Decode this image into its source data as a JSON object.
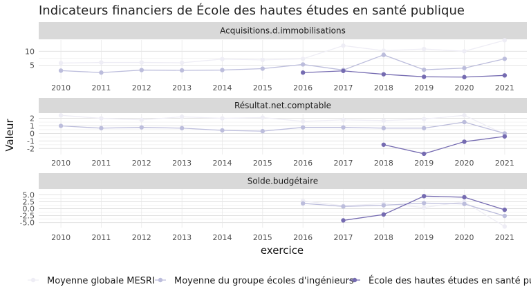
{
  "chart_data": {
    "type": "line",
    "title": "Indicateurs financiers de École des hautes études en santé publique",
    "xlabel": "exercice",
    "ylabel": "Valeur",
    "x": [
      2010,
      2011,
      2012,
      2013,
      2014,
      2015,
      2016,
      2017,
      2018,
      2019,
      2020,
      2021
    ],
    "legend_position": "bottom",
    "series_styles": [
      {
        "name": "Moyenne globale MESRI",
        "color": "#eeedf5"
      },
      {
        "name": "Moyenne du groupe écoles d'ingénieurs",
        "color": "#bcbddc"
      },
      {
        "name": "École des hautes études en santé publique",
        "color": "#756bb1"
      }
    ],
    "panels": [
      {
        "strip": "Acquisitions.d.immobilisations",
        "ylim": [
          0,
          14
        ],
        "yticks": [
          5,
          10
        ],
        "ytick_labels": [
          "5",
          "10"
        ],
        "series": [
          {
            "name": "Moyenne globale MESRI",
            "values": [
              5.8,
              6.0,
              6.0,
              5.9,
              7.2,
              6.9,
              7.3,
              12.0,
              10.2,
              10.8,
              10.0,
              13.9
            ]
          },
          {
            "name": "Moyenne du groupe écoles d'ingénieurs",
            "values": [
              3.1,
              2.4,
              3.3,
              3.2,
              3.3,
              3.8,
              5.3,
              3.3,
              8.7,
              3.4,
              4.0,
              7.3
            ]
          },
          {
            "name": "École des hautes études en santé publique",
            "values": [
              null,
              null,
              null,
              null,
              null,
              null,
              2.4,
              3.0,
              1.8,
              0.9,
              0.8,
              1.4
            ]
          }
        ]
      },
      {
        "strip": "Résultat.net.comptable",
        "ylim": [
          -2.8,
          2.6
        ],
        "yticks": [
          -2,
          -1,
          0,
          1,
          2
        ],
        "ytick_labels": [
          "-2",
          "-1",
          "0",
          "1",
          "2"
        ],
        "series": [
          {
            "name": "Moyenne globale MESRI",
            "values": [
              2.4,
              2.0,
              1.8,
              2.2,
              2.0,
              2.1,
              1.6,
              1.8,
              1.7,
              1.9,
              2.4,
              -0.1
            ]
          },
          {
            "name": "Moyenne du groupe écoles d'ingénieurs",
            "values": [
              1.0,
              0.7,
              0.8,
              0.7,
              0.4,
              0.3,
              0.8,
              0.8,
              0.7,
              0.7,
              1.5,
              0.0
            ]
          },
          {
            "name": "École des hautes études en santé publique",
            "values": [
              null,
              null,
              null,
              null,
              null,
              null,
              null,
              null,
              -1.5,
              -2.7,
              -1.1,
              -0.4
            ]
          }
        ]
      },
      {
        "strip": "Solde.budgétaire",
        "ylim": [
          -6.8,
          6.8
        ],
        "yticks": [
          -5,
          -2.5,
          0,
          2.5,
          5
        ],
        "ytick_labels": [
          "-5.0",
          "-2.5",
          "0.0",
          "2.5",
          "5.0"
        ],
        "series": [
          {
            "name": "Moyenne globale MESRI",
            "values": [
              null,
              null,
              null,
              null,
              null,
              null,
              2.8,
              1.0,
              1.8,
              0.4,
              2.5,
              -6.4
            ]
          },
          {
            "name": "Moyenne du groupe écoles d'ingénieurs",
            "values": [
              null,
              null,
              null,
              null,
              null,
              null,
              1.9,
              0.8,
              1.2,
              2.0,
              1.7,
              -2.6
            ]
          },
          {
            "name": "École des hautes études en santé publique",
            "values": [
              null,
              null,
              null,
              null,
              null,
              null,
              null,
              -4.2,
              -2.1,
              4.5,
              4.1,
              -0.4
            ]
          }
        ]
      }
    ]
  }
}
